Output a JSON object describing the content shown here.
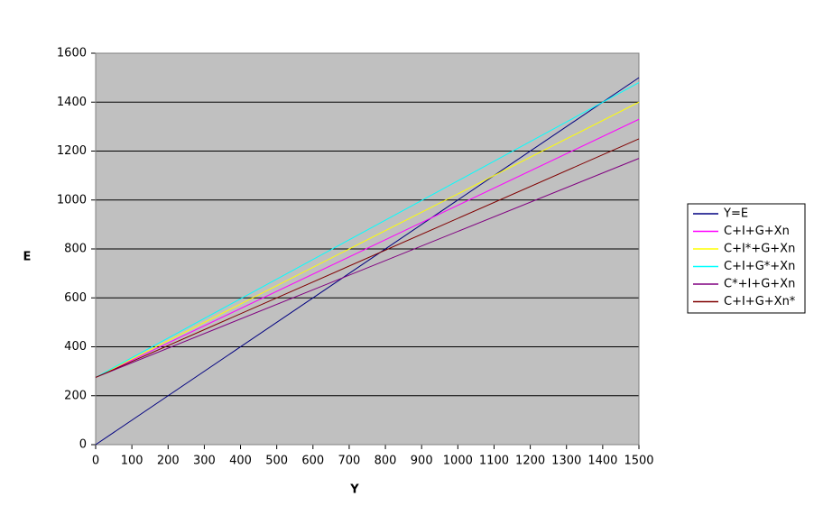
{
  "chart_data": {
    "type": "line",
    "xlabel": "Y",
    "ylabel": "E",
    "x": [
      0,
      1500
    ],
    "series": [
      {
        "name": "Y=E",
        "color": "#000080",
        "values": [
          0,
          1500
        ]
      },
      {
        "name": "C+I+G+Xn",
        "color": "#ff00ff",
        "values": [
          275,
          1330
        ]
      },
      {
        "name": "C+I*+G+Xn",
        "color": "#ffff00",
        "values": [
          275,
          1400
        ]
      },
      {
        "name": "C+I+G*+Xn",
        "color": "#00ffff",
        "values": [
          275,
          1480
        ]
      },
      {
        "name": "C*+I+G+Xn",
        "color": "#800080",
        "values": [
          275,
          1170
        ]
      },
      {
        "name": "C+I+G+Xn*",
        "color": "#800000",
        "values": [
          275,
          1250
        ]
      }
    ],
    "xlim": [
      0,
      1500
    ],
    "ylim": [
      0,
      1600
    ],
    "xticks": [
      0,
      100,
      200,
      300,
      400,
      500,
      600,
      700,
      800,
      900,
      1000,
      1100,
      1200,
      1300,
      1400,
      1500
    ],
    "yticks": [
      0,
      200,
      400,
      600,
      800,
      1000,
      1200,
      1400,
      1600
    ],
    "grid": true,
    "legend": "right"
  }
}
